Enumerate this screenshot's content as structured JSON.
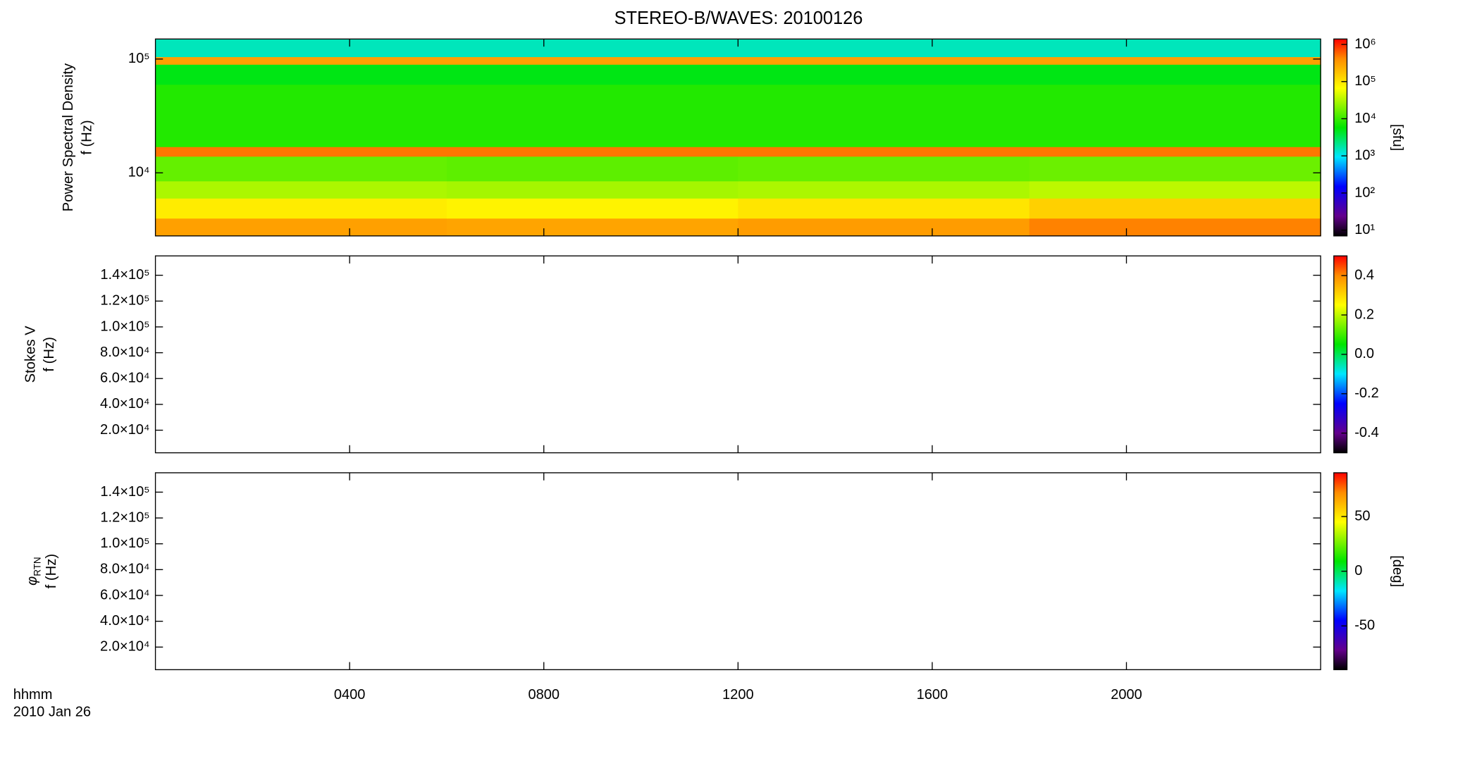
{
  "chart_data": [
    {
      "type": "heatmap",
      "title": "STEREO-B/WAVES: 20100126",
      "ylabel": [
        "Power Spectral Density",
        "f (Hz)"
      ],
      "xlim": [
        0,
        24
      ],
      "ylim": [
        2790,
        150000
      ],
      "ylog": true,
      "yticks": [
        {
          "value": 10000,
          "label": "10⁴"
        },
        {
          "value": 100000,
          "label": "10⁵"
        }
      ],
      "x_bins": [
        0,
        6,
        12,
        18,
        24
      ],
      "y_bins": [
        2790,
        4000,
        6000,
        8500,
        14000,
        17000,
        60000,
        90000,
        105000,
        150000
      ],
      "values": [
        [
          300000,
          280000,
          320000,
          450000
        ],
        [
          90000,
          80000,
          100000,
          140000
        ],
        [
          30000,
          28000,
          30000,
          35000
        ],
        [
          15000,
          14000,
          15000,
          16000
        ],
        [
          500000,
          500000,
          500000,
          500000
        ],
        [
          8000,
          8000,
          8000,
          8000
        ],
        [
          5000,
          5000,
          5000,
          5000
        ],
        [
          300000,
          300000,
          300000,
          300000
        ],
        [
          1500,
          1500,
          1500,
          1500
        ]
      ],
      "colorbar": {
        "lim": [
          7,
          1400000
        ],
        "log": true,
        "label": "[sfu]",
        "ticks": [
          {
            "value": 10,
            "label": "10¹"
          },
          {
            "value": 100,
            "label": "10²"
          },
          {
            "value": 1000,
            "label": "10³"
          },
          {
            "value": 10000,
            "label": "10⁴"
          },
          {
            "value": 100000,
            "label": "10⁵"
          },
          {
            "value": 1000000,
            "label": "10⁶"
          }
        ]
      }
    },
    {
      "type": "heatmap",
      "ylabel": [
        "Stokes V",
        "f (Hz)"
      ],
      "xlim": [
        0,
        24
      ],
      "ylim": [
        2500,
        155000
      ],
      "ylog": false,
      "yticks": [
        {
          "value": 20000,
          "label": "2.0×10⁴"
        },
        {
          "value": 40000,
          "label": "4.0×10⁴"
        },
        {
          "value": 60000,
          "label": "6.0×10⁴"
        },
        {
          "value": 80000,
          "label": "8.0×10⁴"
        },
        {
          "value": 100000,
          "label": "1.0×10⁵"
        },
        {
          "value": 120000,
          "label": "1.2×10⁵"
        },
        {
          "value": 140000,
          "label": "1.4×10⁵"
        }
      ],
      "colorbar": {
        "lim": [
          -0.5,
          0.5
        ],
        "log": false,
        "ticks": [
          {
            "value": -0.4,
            "label": "-0.4"
          },
          {
            "value": -0.2,
            "label": "-0.2"
          },
          {
            "value": 0,
            "label": "0.0"
          },
          {
            "value": 0.2,
            "label": "0.2"
          },
          {
            "value": 0.4,
            "label": "0.4"
          }
        ]
      }
    },
    {
      "type": "heatmap",
      "ylabel": [
        "φ",
        "RTN",
        "f (Hz)"
      ],
      "xlabel": [
        "hhmm",
        "2010 Jan 26"
      ],
      "xlim": [
        0,
        24
      ],
      "ylim": [
        2500,
        155000
      ],
      "ylog": false,
      "xticks": [
        {
          "value": 4,
          "label": "0400"
        },
        {
          "value": 8,
          "label": "0800"
        },
        {
          "value": 12,
          "label": "1200"
        },
        {
          "value": 16,
          "label": "1600"
        },
        {
          "value": 20,
          "label": "2000"
        }
      ],
      "yticks": [
        {
          "value": 20000,
          "label": "2.0×10⁴"
        },
        {
          "value": 40000,
          "label": "4.0×10⁴"
        },
        {
          "value": 60000,
          "label": "6.0×10⁴"
        },
        {
          "value": 80000,
          "label": "8.0×10⁴"
        },
        {
          "value": 100000,
          "label": "1.0×10⁵"
        },
        {
          "value": 120000,
          "label": "1.2×10⁵"
        },
        {
          "value": 140000,
          "label": "1.4×10⁵"
        }
      ],
      "colorbar": {
        "lim": [
          -90,
          90
        ],
        "log": false,
        "label": "[deg]",
        "ticks": [
          -50,
          0,
          50
        ]
      }
    }
  ]
}
